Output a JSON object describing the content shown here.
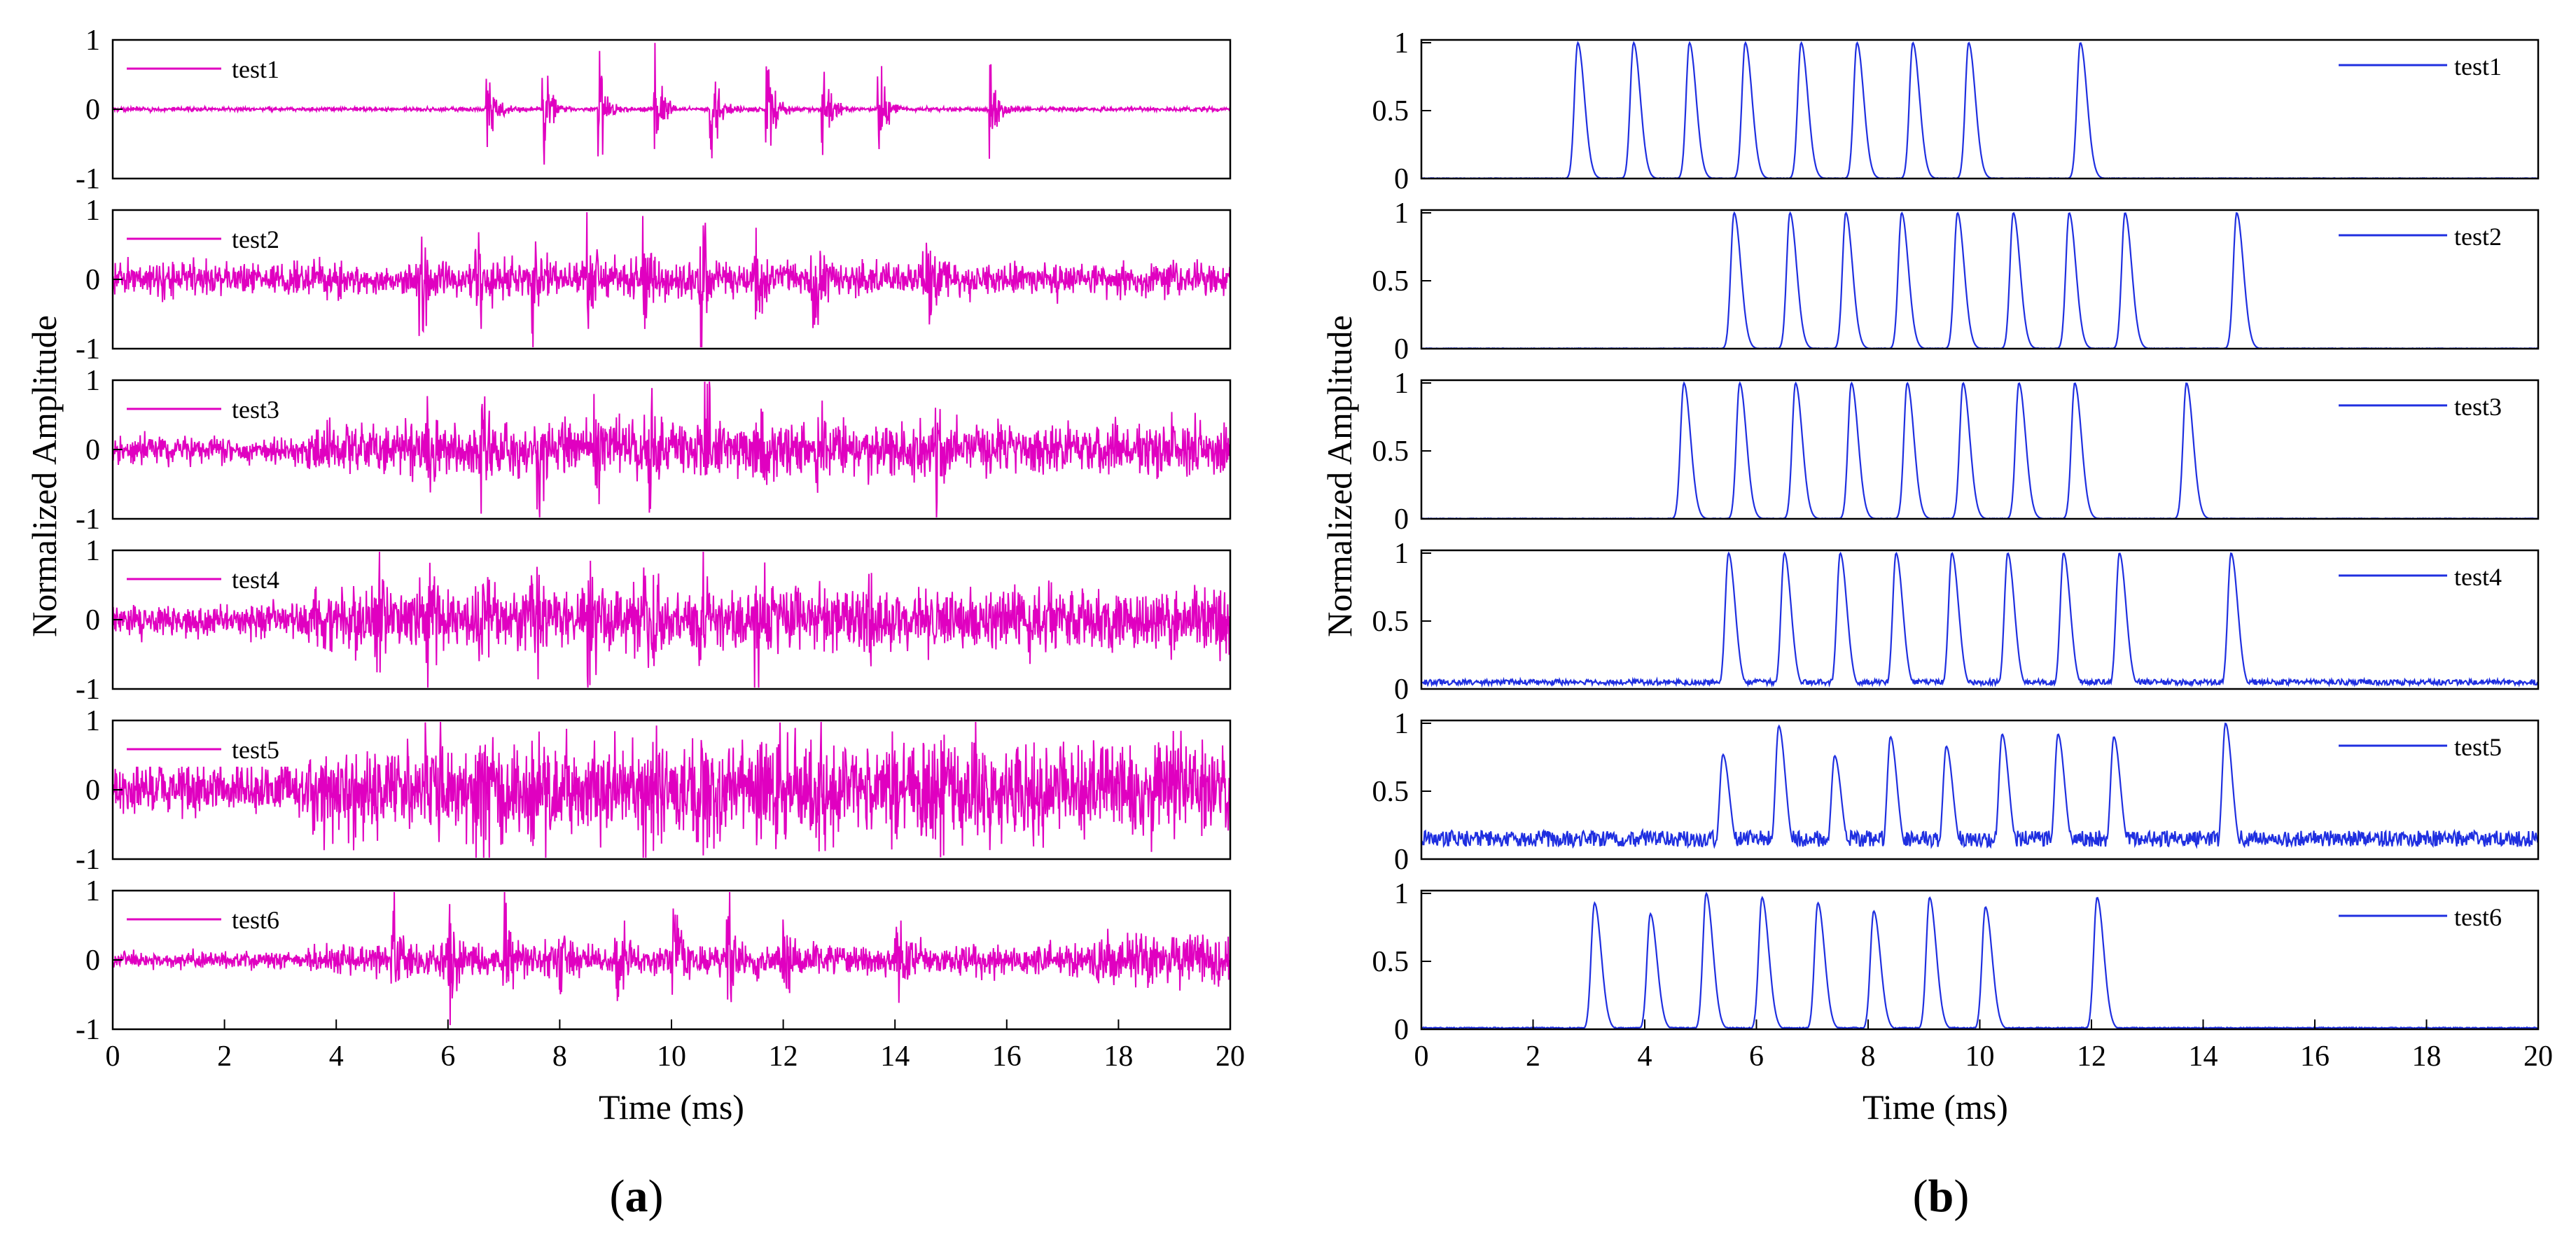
{
  "figure": {
    "panel_a_label": "(a)",
    "panel_b_label": "(b)",
    "panel_a_label_parts": [
      "(",
      "a",
      ")"
    ],
    "panel_b_label_parts": [
      "(",
      "b",
      ")"
    ]
  },
  "colors": {
    "panel_a": "#E000C0",
    "panel_b": "#1F2FE0",
    "frame": "#000000"
  },
  "chart_data": [
    {
      "type": "line",
      "title": "(a)",
      "xlabel": "Time (ms)",
      "ylabel": "Normalized Amplitude",
      "xlim": [
        0,
        20
      ],
      "ylim": [
        -1,
        1
      ],
      "xticks": [
        "0",
        "2",
        "4",
        "6",
        "8",
        "10",
        "12",
        "14",
        "16",
        "18",
        "20"
      ],
      "yticks": [
        "-1",
        "0",
        "1"
      ],
      "legend_position": "top-left",
      "series": [
        {
          "name": "test1",
          "noise": 0.03,
          "burst_times": [
            6.7,
            7.7,
            8.7,
            9.7,
            10.7,
            11.7,
            12.7,
            13.7,
            15.7
          ],
          "burst_amplitude": 1.0,
          "noise_boost_from": null
        },
        {
          "name": "test2",
          "noise": 0.25,
          "burst_times": [
            5.5,
            6.5,
            7.5,
            8.5,
            9.5,
            10.5,
            11.5,
            12.5,
            14.5
          ],
          "burst_amplitude": 1.0,
          "noise_boost_from": null
        },
        {
          "name": "test3",
          "noise": 0.38,
          "burst_times": [
            5.6,
            6.6,
            7.6,
            8.6,
            9.6,
            10.6,
            11.6,
            12.6,
            14.7
          ],
          "burst_amplitude": 1.0,
          "noise_boost_from": null
        },
        {
          "name": "test4",
          "noise": 0.45,
          "burst_times": [
            4.7,
            5.6,
            6.5,
            7.5,
            8.5,
            9.5,
            10.5,
            11.5,
            13.5
          ],
          "burst_amplitude": 1.0,
          "noise_boost_from": null
        },
        {
          "name": "test5",
          "noise": 0.7,
          "burst_times": [
            5.6,
            6.5,
            7.5,
            8.5,
            9.5,
            10.5,
            11.5,
            12.5,
            14.5
          ],
          "burst_amplitude": 1.0,
          "noise_boost_from": null
        },
        {
          "name": "test6",
          "noise": 0.22,
          "burst_times": [
            5.0,
            6.0,
            7.0,
            8.0,
            9.0,
            10.0,
            11.0,
            12.0,
            14.0
          ],
          "burst_amplitude": 1.0,
          "noise_boost_from": 17.5
        }
      ]
    },
    {
      "type": "line",
      "title": "(b)",
      "xlabel": "Time (ms)",
      "ylabel": "Normalized Amplitude",
      "xlim": [
        0,
        20
      ],
      "ylim": [
        0,
        1
      ],
      "xticks": [
        "0",
        "2",
        "4",
        "6",
        "8",
        "10",
        "12",
        "14",
        "16",
        "18",
        "20"
      ],
      "yticks": [
        "0",
        "0.5",
        "1"
      ],
      "legend_position": "top-right",
      "series": [
        {
          "name": "test1",
          "baseline": 0.0,
          "peaks": [
            [
              2.8,
              1
            ],
            [
              3.8,
              1
            ],
            [
              4.8,
              1
            ],
            [
              5.8,
              1
            ],
            [
              6.8,
              1
            ],
            [
              7.8,
              1
            ],
            [
              8.8,
              1
            ],
            [
              9.8,
              1
            ],
            [
              11.8,
              1
            ]
          ]
        },
        {
          "name": "test2",
          "baseline": 0.0,
          "peaks": [
            [
              5.6,
              1
            ],
            [
              6.6,
              1
            ],
            [
              7.6,
              1
            ],
            [
              8.6,
              1
            ],
            [
              9.6,
              1
            ],
            [
              10.6,
              1
            ],
            [
              11.6,
              1
            ],
            [
              12.6,
              1
            ],
            [
              14.6,
              1
            ]
          ]
        },
        {
          "name": "test3",
          "baseline": 0.0,
          "peaks": [
            [
              4.7,
              1
            ],
            [
              5.7,
              1
            ],
            [
              6.7,
              1
            ],
            [
              7.7,
              1
            ],
            [
              8.7,
              1
            ],
            [
              9.7,
              1
            ],
            [
              10.7,
              1
            ],
            [
              11.7,
              1
            ],
            [
              13.7,
              1
            ]
          ]
        },
        {
          "name": "test4",
          "baseline": 0.05,
          "peaks": [
            [
              5.5,
              1
            ],
            [
              6.5,
              1
            ],
            [
              7.5,
              1
            ],
            [
              8.5,
              1
            ],
            [
              9.5,
              1
            ],
            [
              10.5,
              1
            ],
            [
              11.5,
              1
            ],
            [
              12.5,
              1
            ],
            [
              14.5,
              1
            ]
          ]
        },
        {
          "name": "test5",
          "baseline": 0.15,
          "peaks": [
            [
              5.4,
              0.77
            ],
            [
              6.4,
              0.98
            ],
            [
              7.4,
              0.76
            ],
            [
              8.4,
              0.9
            ],
            [
              9.4,
              0.83
            ],
            [
              10.4,
              0.92
            ],
            [
              11.4,
              0.92
            ],
            [
              12.4,
              0.9
            ],
            [
              14.4,
              1.0
            ]
          ]
        },
        {
          "name": "test6",
          "baseline": 0.01,
          "peaks": [
            [
              3.1,
              0.93
            ],
            [
              4.1,
              0.85
            ],
            [
              5.1,
              1.0
            ],
            [
              6.1,
              0.97
            ],
            [
              7.1,
              0.93
            ],
            [
              8.1,
              0.87
            ],
            [
              9.1,
              0.97
            ],
            [
              10.1,
              0.9
            ],
            [
              12.1,
              0.97
            ]
          ]
        }
      ]
    }
  ]
}
